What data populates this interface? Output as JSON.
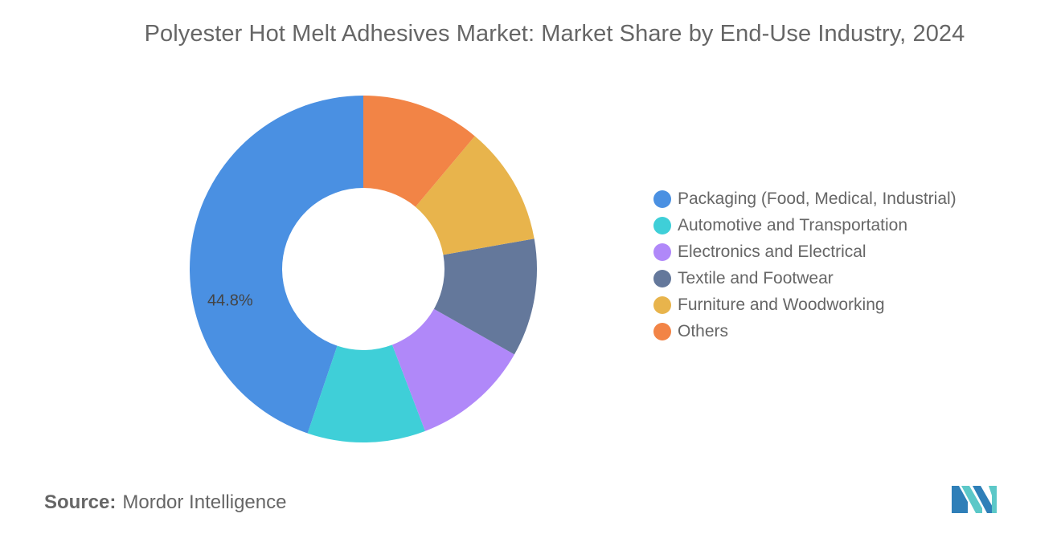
{
  "title": "Polyester Hot Melt Adhesives Market: Market Share by End-Use Industry, 2024",
  "chart_data": {
    "type": "pie",
    "variant": "donut",
    "title": "Polyester Hot Melt Adhesives Market: Market Share by End-Use Industry, 2024",
    "categories": [
      "Packaging (Food, Medical, Industrial)",
      "Automotive and Transportation",
      "Electronics and Electrical",
      "Textile and Footwear",
      "Furniture and Woodworking",
      "Others"
    ],
    "values": [
      44.8,
      11.0,
      11.0,
      11.0,
      11.1,
      11.1
    ],
    "colors": [
      "#4a90e2",
      "#3fcfd8",
      "#b088f9",
      "#64789b",
      "#e8b44c",
      "#f28446"
    ],
    "data_labels": [
      "44.8%",
      "",
      "",
      "",
      "",
      ""
    ],
    "legend_position": "right",
    "grid": false
  },
  "source": {
    "label": "Source:",
    "value": "Mordor Intelligence"
  },
  "logo": {
    "icon": "mordor-intelligence-logo-icon",
    "colors": [
      "#2f7fb8",
      "#5cc8c8"
    ]
  }
}
